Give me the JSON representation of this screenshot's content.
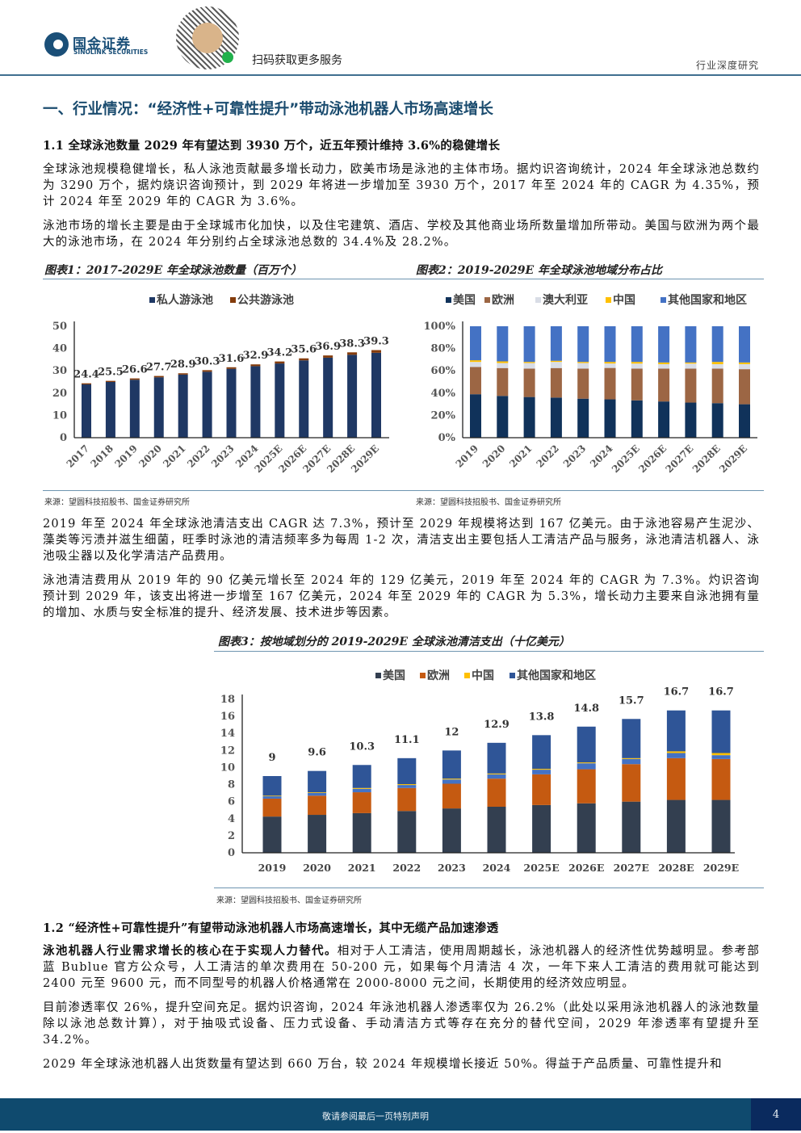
{
  "header": {
    "brand_cn": "国金证券",
    "brand_en": "SINOLINK SECURITIES",
    "qr_caption": "扫码获取更多服务",
    "doc_type": "行业深度研究"
  },
  "section": {
    "title": "一、行业情况：“经济性+可靠性提升”带动泳池机器人市场高速增长"
  },
  "s11": {
    "title": "1.1 全球泳池数量 2029 年有望达到 3930 万个，近五年预计维持 3.6%的稳健增长",
    "p1": "全球泳池规模稳健增长，私人泳池贡献最多增长动力，欧美市场是泳池的主体市场。据灼识咨询统计，2024 年全球泳池总数约为 3290 万个，据灼烧识咨询预计，到 2029 年将进一步增加至 3930 万个，2017 年至 2024 年的 CAGR 为 4.35%，预计 2024 年至 2029 年的 CAGR 为 3.6%。",
    "p2": "泳池市场的增长主要是由于全球城市化加快，以及住宅建筑、酒店、学校及其他商业场所数量增加所带动。美国与欧洲为两个最大的泳池市场，在 2024 年分别约占全球泳池总数的 34.4%及 28.2%。",
    "p3": "2019 年至 2024 年全球泳池清洁支出 CAGR 达 7.3%，预计至 2029 年规模将达到 167 亿美元。由于泳池容易产生泥沙、藻类等污渍并滋生细菌，旺季时泳池的清洁频率多为每周 1-2 次，清洁支出主要包括人工清洁产品与服务，泳池清洁机器人、泳池吸尘器以及化学清洁产品费用。",
    "p4": "泳池清洁费用从 2019 年的 90 亿美元增长至 2024 年的 129 亿美元，2019 年至 2024 年的 CAGR 为 7.3%。灼识咨询预计到 2029 年，该支出将进一步增至 167 亿美元，2024 年至 2029 年的 CAGR 为 5.3%，增长动力主要来自泳池拥有量的增加、水质与安全标准的提升、经济发展、技术进步等因素。"
  },
  "s12": {
    "title": "1.2 “经济性+可靠性提升”有望带动泳池机器人市场高速增长，其中无缆产品加速渗透",
    "p1_bold": "泳池机器人行业需求增长的核心在于实现人力替代。",
    "p1": "相对于人工清洁，使用周期越长，泳池机器人的经济性优势越明显。参考部蓝 Bublue 官方公众号，人工清洁的单次费用在 50-200 元，如果每个月清洁 4 次，一年下来人工清洁的费用就可能达到 2400 元至 9600 元，而不同型号的机器人价格通常在 2000-8000 元之间，长期使用的经济效应明显。",
    "p2": "目前渗透率仅 26%，提升空间充足。据灼识咨询，2024 年泳池机器人渗透率仅为 26.2%（此处以采用泳池机器人的泳池数量除以泳池总数计算），对于抽吸式设备、压力式设备、手动清洁方式等存在充分的替代空间，2029 年渗透率有望提升至 34.2%。",
    "p3": "2029 年全球泳池机器人出货数量有望达到 660 万台，较 2024 年规模增长接近 50%。得益于产品质量、可靠性提升和"
  },
  "footer": {
    "notice": "敬请参阅最后一页特别声明",
    "page": "4"
  },
  "chart_data": [
    {
      "type": "bar",
      "stacked": true,
      "title": "图表1：2017-2029E 年全球泳池数量（百万个）",
      "source": "来源：望圆科技招股书、国金证券研究所",
      "categories": [
        "2017",
        "2018",
        "2019",
        "2020",
        "2021",
        "2022",
        "2023",
        "2024",
        "2025E",
        "2026E",
        "2027E",
        "2028E",
        "2029E"
      ],
      "series": [
        {
          "name": "私人游泳池",
          "color": "#1f3864",
          "values": [
            23.9,
            25.0,
            26.0,
            27.1,
            28.3,
            29.6,
            30.9,
            32.1,
            33.3,
            34.7,
            35.9,
            37.2,
            38.1
          ]
        },
        {
          "name": "公共游泳池",
          "color": "#843c0c",
          "values": [
            0.5,
            0.5,
            0.6,
            0.6,
            0.6,
            0.7,
            0.7,
            0.8,
            0.9,
            0.9,
            1.0,
            1.1,
            1.2
          ]
        }
      ],
      "totals": [
        "24.4",
        "25.5",
        "26.6",
        "27.7",
        "28.9",
        "30.3",
        "31.6",
        "32.9",
        "34.2",
        "35.6",
        "36.9",
        "38.3",
        "39.3"
      ],
      "ylim": [
        0,
        50
      ],
      "yticks": [
        "0",
        "10",
        "20",
        "30",
        "40",
        "50"
      ],
      "legend": "top"
    },
    {
      "type": "bar",
      "stacked": true,
      "percent": true,
      "title": "图表2：2019-2029E 年全球泳池地域分布占比",
      "source": "来源：望圆科技招股书、国金证券研究所",
      "categories": [
        "2019",
        "2020",
        "2021",
        "2022",
        "2023",
        "2024",
        "2025E",
        "2026E",
        "2027E",
        "2028E",
        "2029E"
      ],
      "series": [
        {
          "name": "美国",
          "color": "#10325a",
          "values": [
            39,
            37.5,
            36.5,
            36,
            35,
            34.4,
            33.5,
            32.5,
            31.5,
            31,
            30
          ]
        },
        {
          "name": "欧洲",
          "color": "#9c6644",
          "values": [
            24.5,
            25,
            25.5,
            26.5,
            27,
            28.2,
            28.5,
            29.5,
            30.5,
            31,
            31.5
          ]
        },
        {
          "name": "澳大利亚",
          "color": "#d9dde6",
          "values": [
            4.5,
            4.5,
            5,
            5.5,
            5,
            4,
            4.5,
            4,
            4.5,
            4,
            4.5
          ]
        },
        {
          "name": "中国",
          "color": "#ffc000",
          "values": [
            1.5,
            1.5,
            1,
            1,
            1,
            1.4,
            1.5,
            1.5,
            1,
            2,
            1.5
          ]
        },
        {
          "name": "其他国家和地区",
          "color": "#4472c4",
          "values": [
            30.5,
            31.5,
            32,
            31,
            32,
            32,
            32,
            32.5,
            32.5,
            32,
            32.5
          ]
        }
      ],
      "ylim": [
        0,
        100
      ],
      "yticks": [
        "0%",
        "20%",
        "40%",
        "60%",
        "80%",
        "100%"
      ],
      "legend": "top"
    },
    {
      "type": "bar",
      "stacked": true,
      "title": "图表3：按地域划分的 2019-2029E 全球泳池清洁支出（十亿美元）",
      "source": "来源：望圆科技招股书、国金证券研究所",
      "categories": [
        "2019",
        "2020",
        "2021",
        "2022",
        "2023",
        "2024",
        "2025E",
        "2026E",
        "2027E",
        "2028E",
        "2029E"
      ],
      "series": [
        {
          "name": "美国",
          "color": "#333f50",
          "values": [
            4.25,
            4.45,
            4.65,
            4.9,
            5.2,
            5.4,
            5.6,
            5.8,
            6.0,
            6.2,
            6.2
          ]
        },
        {
          "name": "欧洲",
          "color": "#c55a11",
          "values": [
            2.1,
            2.25,
            2.45,
            2.7,
            2.9,
            3.3,
            3.6,
            4.0,
            4.4,
            4.9,
            4.8
          ]
        },
        {
          "color": "#4472c4",
          "values": [
            0.3,
            0.35,
            0.4,
            0.35,
            0.5,
            0.5,
            0.55,
            0.7,
            0.6,
            0.6,
            0.45
          ]
        },
        {
          "name": "中国",
          "color": "#ffc000",
          "values": [
            0.05,
            0.05,
            0.1,
            0.1,
            0.1,
            0.1,
            0.1,
            0.1,
            0.1,
            0.2,
            0.25
          ]
        },
        {
          "name": "其他国家和地区",
          "color": "#2f5597",
          "values": [
            2.3,
            2.5,
            2.7,
            3.05,
            3.3,
            3.6,
            3.95,
            4.2,
            4.6,
            4.8,
            5.0
          ]
        }
      ],
      "totals": [
        "9",
        "9.6",
        "10.3",
        "11.1",
        "12",
        "12.9",
        "13.8",
        "14.8",
        "15.7",
        "16.7",
        "16.7"
      ],
      "ylim": [
        0,
        18
      ],
      "yticks": [
        "0",
        "2",
        "4",
        "6",
        "8",
        "10",
        "12",
        "14",
        "16",
        "18"
      ],
      "legend": "top"
    }
  ]
}
